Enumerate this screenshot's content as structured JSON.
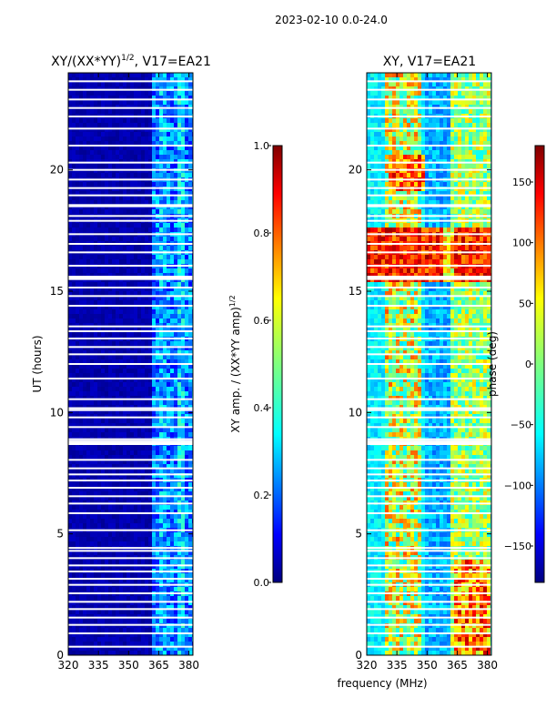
{
  "suptitle": "2023-02-10 0.0-24.0",
  "xlabel": "frequency (MHz)",
  "colors": {
    "jet": [
      "#00007f",
      "#0000ff",
      "#007fff",
      "#00ffff",
      "#7fff7f",
      "#ffff00",
      "#ff7f00",
      "#ff0000",
      "#7f0000"
    ],
    "gap": "#ffffff",
    "frame": "#000000"
  },
  "chart_data": [
    {
      "type": "heatmap",
      "title_main": "XY/(XX*YY)",
      "title_sup": "1/2",
      "title_rest": ", V17=EA21",
      "xlabel": "frequency (MHz)",
      "ylabel": "UT (hours)",
      "xlim": [
        320,
        382
      ],
      "ylim": [
        0,
        24
      ],
      "xticks": [
        "320",
        "335",
        "350",
        "365",
        "380"
      ],
      "xtick_values": [
        320,
        335,
        350,
        365,
        380
      ],
      "yticks": [
        "0",
        "5",
        "10",
        "15",
        "20"
      ],
      "ytick_values": [
        0,
        5,
        10,
        15,
        20
      ],
      "colorbar": {
        "label_main": "XY amp. / (XX*YY amp)",
        "label_sup": "1/2",
        "range": [
          0.0,
          1.0
        ],
        "ticks": [
          "0.0",
          "0.2",
          "0.4",
          "0.6",
          "0.8",
          "1.0"
        ],
        "tick_values": [
          0.0,
          0.2,
          0.4,
          0.6,
          0.8,
          1.0
        ]
      },
      "description": "Mostly near-zero normalized amplitude (dark blue); elevated values 0.2-0.45 in channels 360-382 MHz; horizontal white flagged rows."
    },
    {
      "type": "heatmap",
      "title": "XY, V17=EA21",
      "xlabel": "frequency (MHz)",
      "ylabel": "",
      "xlim": [
        320,
        382
      ],
      "ylim": [
        0,
        24
      ],
      "xticks": [
        "320",
        "335",
        "350",
        "365",
        "380"
      ],
      "xtick_values": [
        320,
        335,
        350,
        365,
        380
      ],
      "yticks": [
        "0",
        "5",
        "10",
        "15",
        "20"
      ],
      "ytick_values": [
        0,
        5,
        10,
        15,
        20
      ],
      "colorbar": {
        "label": "phase (deg)",
        "range": [
          -180,
          180
        ],
        "ticks": [
          "150",
          "100",
          "50",
          "0",
          "−50",
          "−100",
          "−150"
        ],
        "tick_values": [
          150,
          100,
          50,
          0,
          -50,
          -100,
          -150
        ]
      },
      "description": "Noisy phase across band; warm (positive) structures near 330-345 MHz and 360-380 MHz, strong positive band ~15.5-17.5 h; flagged white rows."
    }
  ],
  "flag_rows_hours": [
    0.35,
    0.9,
    1.25,
    1.55,
    1.9,
    2.2,
    2.55,
    2.9,
    3.15,
    3.45,
    3.7,
    4.0,
    4.3,
    4.42,
    5.15,
    5.85,
    6.25,
    6.55,
    6.9,
    7.2,
    7.45,
    7.7,
    8.05,
    8.7,
    8.75,
    8.82,
    8.9,
    9.4,
    9.8,
    10.1,
    10.18,
    10.55,
    11.4,
    12.0,
    12.4,
    12.7,
    13.05,
    13.35,
    13.55,
    14.4,
    14.8,
    15.15,
    15.5,
    15.55,
    15.6,
    16.05,
    16.6,
    16.95,
    17.35,
    17.9,
    18.1,
    18.5,
    18.55,
    18.95,
    19.25,
    19.6,
    20.0,
    20.3,
    21.0,
    21.7,
    22.2,
    22.55,
    22.9,
    23.3,
    23.65
  ]
}
